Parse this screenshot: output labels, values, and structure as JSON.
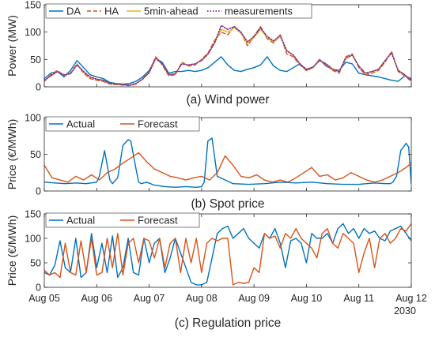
{
  "figure_name": "three-panel-time-series-figure",
  "x_tick_labels": [
    "Aug 05",
    "Aug 06",
    "Aug 07",
    "Aug 08",
    "Aug 09",
    "Aug 10",
    "Aug 11",
    "Aug 12"
  ],
  "x_year_label": "2030",
  "chart_data": [
    {
      "type": "line",
      "caption": "(a) Wind power",
      "ylabel": "Power (MW)",
      "ylim": [
        0,
        150
      ],
      "yticks": [
        0,
        50,
        100,
        150
      ],
      "xlim": [
        0,
        7
      ],
      "grid": false,
      "legend_placement": "top",
      "legend_orientation": "horizontal",
      "series": [
        {
          "name": "DA",
          "color": "#0072BD",
          "style": "solid",
          "x": [
            0,
            0.125,
            0.25,
            0.375,
            0.5,
            0.625,
            0.75,
            0.875,
            1,
            1.125,
            1.25,
            1.375,
            1.5,
            1.625,
            1.75,
            1.875,
            2,
            2.125,
            2.25,
            2.375,
            2.5,
            2.625,
            2.75,
            2.875,
            3,
            3.125,
            3.25,
            3.375,
            3.5,
            3.625,
            3.75,
            3.875,
            4,
            4.125,
            4.25,
            4.375,
            4.5,
            4.625,
            4.75,
            4.875,
            5,
            5.125,
            5.25,
            5.375,
            5.5,
            5.625,
            5.75,
            5.875,
            6,
            6.125,
            6.25,
            6.375,
            6.5,
            6.625,
            6.75,
            6.875,
            7
          ],
          "y": [
            15,
            25,
            28,
            18,
            30,
            48,
            35,
            22,
            18,
            15,
            8,
            6,
            5,
            6,
            10,
            18,
            30,
            52,
            45,
            25,
            28,
            28,
            30,
            28,
            30,
            35,
            45,
            55,
            40,
            30,
            28,
            32,
            35,
            40,
            55,
            38,
            30,
            28,
            35,
            42,
            30,
            35,
            50,
            38,
            32,
            30,
            45,
            42,
            25,
            22,
            20,
            18,
            15,
            12,
            10,
            20,
            15
          ]
        },
        {
          "name": "HA",
          "color": "#D95319",
          "style": "dashed",
          "x": [
            0,
            0.125,
            0.25,
            0.375,
            0.5,
            0.625,
            0.75,
            0.875,
            1,
            1.125,
            1.25,
            1.375,
            1.5,
            1.625,
            1.75,
            1.875,
            2,
            2.125,
            2.25,
            2.375,
            2.5,
            2.625,
            2.75,
            2.875,
            3,
            3.125,
            3.25,
            3.375,
            3.5,
            3.625,
            3.75,
            3.875,
            4,
            4.125,
            4.25,
            4.375,
            4.5,
            4.625,
            4.75,
            4.875,
            5,
            5.125,
            5.25,
            5.375,
            5.5,
            5.625,
            5.75,
            5.875,
            6,
            6.125,
            6.25,
            6.375,
            6.5,
            6.625,
            6.75,
            6.875,
            7
          ],
          "y": [
            10,
            22,
            30,
            20,
            25,
            42,
            25,
            15,
            12,
            10,
            5,
            4,
            3,
            2,
            5,
            15,
            28,
            55,
            40,
            20,
            22,
            45,
            38,
            40,
            50,
            62,
            85,
            100,
            95,
            110,
            100,
            75,
            92,
            110,
            88,
            80,
            95,
            60,
            55,
            40,
            30,
            35,
            50,
            40,
            30,
            25,
            55,
            60,
            35,
            22,
            25,
            30,
            45,
            65,
            28,
            20,
            10
          ]
        },
        {
          "name": "5min-ahead",
          "color": "#EDB120",
          "style": "solid",
          "x": [
            0,
            0.125,
            0.25,
            0.375,
            0.5,
            0.625,
            0.75,
            0.875,
            1,
            1.125,
            1.25,
            1.375,
            1.5,
            1.625,
            1.75,
            1.875,
            2,
            2.125,
            2.25,
            2.375,
            2.5,
            2.625,
            2.75,
            2.875,
            3,
            3.125,
            3.25,
            3.375,
            3.5,
            3.625,
            3.75,
            3.875,
            4,
            4.125,
            4.25,
            4.375,
            4.5,
            4.625,
            4.75,
            4.875,
            5,
            5.125,
            5.25,
            5.375,
            5.5,
            5.625,
            5.75,
            5.875,
            6,
            6.125,
            6.25,
            6.375,
            6.5,
            6.625,
            6.75,
            6.875,
            7
          ],
          "y": [
            12,
            20,
            28,
            22,
            24,
            40,
            28,
            18,
            14,
            12,
            6,
            5,
            4,
            3,
            6,
            14,
            26,
            52,
            42,
            22,
            24,
            42,
            40,
            42,
            48,
            60,
            80,
            105,
            100,
            108,
            98,
            80,
            90,
            105,
            90,
            82,
            92,
            65,
            58,
            42,
            32,
            36,
            48,
            42,
            32,
            28,
            52,
            58,
            38,
            25,
            28,
            32,
            48,
            62,
            30,
            22,
            12
          ]
        },
        {
          "name": "measurements",
          "color": "#7E2F8E",
          "style": "dotted",
          "x": [
            0,
            0.125,
            0.25,
            0.375,
            0.5,
            0.625,
            0.75,
            0.875,
            1,
            1.125,
            1.25,
            1.375,
            1.5,
            1.625,
            1.75,
            1.875,
            2,
            2.125,
            2.25,
            2.375,
            2.5,
            2.625,
            2.75,
            2.875,
            3,
            3.125,
            3.25,
            3.375,
            3.5,
            3.625,
            3.75,
            3.875,
            4,
            4.125,
            4.25,
            4.375,
            4.5,
            4.625,
            4.75,
            4.875,
            5,
            5.125,
            5.25,
            5.375,
            5.5,
            5.625,
            5.75,
            5.875,
            6,
            6.125,
            6.25,
            6.375,
            6.5,
            6.625,
            6.75,
            6.875,
            7
          ],
          "y": [
            12,
            20,
            28,
            22,
            24,
            40,
            28,
            18,
            14,
            12,
            6,
            5,
            4,
            3,
            6,
            14,
            26,
            52,
            42,
            22,
            24,
            42,
            40,
            42,
            48,
            60,
            80,
            112,
            105,
            110,
            100,
            82,
            92,
            108,
            92,
            84,
            94,
            66,
            58,
            42,
            32,
            36,
            48,
            42,
            32,
            28,
            52,
            58,
            38,
            25,
            28,
            32,
            48,
            62,
            30,
            22,
            12
          ]
        }
      ]
    },
    {
      "type": "line",
      "caption": "(b) Spot price",
      "ylabel": "Price (€/MWh)",
      "ylim": [
        0,
        100
      ],
      "yticks": [
        0,
        50,
        100
      ],
      "xlim": [
        0,
        7
      ],
      "grid": false,
      "legend_placement": "top-left",
      "legend_orientation": "horizontal",
      "series": [
        {
          "name": "Actual",
          "color": "#0072BD",
          "style": "solid",
          "x": [
            0,
            0.2,
            0.4,
            0.6,
            0.8,
            1.0,
            1.05,
            1.15,
            1.25,
            1.3,
            1.4,
            1.5,
            1.6,
            1.65,
            1.75,
            1.8,
            1.85,
            1.95,
            2.1,
            2.3,
            2.5,
            2.7,
            2.9,
            3.0,
            3.05,
            3.12,
            3.2,
            3.3,
            3.6,
            3.9,
            4.2,
            4.5,
            4.8,
            5.1,
            5.4,
            5.7,
            6.0,
            6.3,
            6.5,
            6.6,
            6.65,
            6.72,
            6.8,
            6.9,
            6.95,
            7
          ],
          "y": [
            12,
            11,
            10,
            11,
            10,
            12,
            20,
            55,
            15,
            10,
            18,
            62,
            70,
            68,
            30,
            12,
            10,
            12,
            8,
            6,
            5,
            6,
            5,
            6,
            12,
            68,
            72,
            20,
            10,
            9,
            10,
            12,
            11,
            12,
            10,
            9,
            9,
            11,
            10,
            10,
            12,
            20,
            55,
            65,
            60,
            10
          ]
        },
        {
          "name": "Forecast",
          "color": "#D95319",
          "style": "solid",
          "x": [
            0,
            0.15,
            0.3,
            0.45,
            0.6,
            0.75,
            0.9,
            1.05,
            1.2,
            1.35,
            1.5,
            1.65,
            1.8,
            1.95,
            2.1,
            2.25,
            2.4,
            2.55,
            2.7,
            2.85,
            3.0,
            3.15,
            3.3,
            3.45,
            3.6,
            3.75,
            3.9,
            4.05,
            4.2,
            4.35,
            4.5,
            4.65,
            4.8,
            4.95,
            5.1,
            5.25,
            5.4,
            5.55,
            5.7,
            5.85,
            6.0,
            6.15,
            6.3,
            6.45,
            6.6,
            6.75,
            6.9,
            7
          ],
          "y": [
            35,
            18,
            15,
            12,
            20,
            15,
            22,
            15,
            25,
            30,
            38,
            45,
            52,
            40,
            30,
            25,
            20,
            18,
            15,
            18,
            20,
            15,
            25,
            48,
            35,
            20,
            18,
            22,
            15,
            12,
            15,
            12,
            18,
            25,
            32,
            20,
            22,
            15,
            18,
            25,
            20,
            15,
            12,
            15,
            20,
            25,
            32,
            38
          ]
        }
      ]
    },
    {
      "type": "line",
      "caption": "(c) Regulation price",
      "ylabel": "Price (€/MWh)",
      "ylim": [
        0,
        150
      ],
      "yticks": [
        0,
        50,
        100,
        150
      ],
      "xlim": [
        0,
        7
      ],
      "grid": false,
      "legend_placement": "top-left",
      "legend_orientation": "horizontal",
      "series": [
        {
          "name": "Actual",
          "color": "#0072BD",
          "style": "solid",
          "x": [
            0,
            0.1,
            0.2,
            0.3,
            0.4,
            0.5,
            0.6,
            0.7,
            0.8,
            0.9,
            1.0,
            1.1,
            1.2,
            1.3,
            1.4,
            1.5,
            1.6,
            1.7,
            1.8,
            1.9,
            2.0,
            2.1,
            2.2,
            2.3,
            2.4,
            2.5,
            2.6,
            2.7,
            2.8,
            2.9,
            3.0,
            3.1,
            3.2,
            3.3,
            3.4,
            3.5,
            3.6,
            3.7,
            3.8,
            3.9,
            4.0,
            4.1,
            4.2,
            4.3,
            4.4,
            4.5,
            4.6,
            4.7,
            4.8,
            4.9,
            5.0,
            5.1,
            5.2,
            5.3,
            5.4,
            5.5,
            5.6,
            5.7,
            5.8,
            5.9,
            6.0,
            6.1,
            6.2,
            6.3,
            6.4,
            6.5,
            6.6,
            6.7,
            6.8,
            6.9,
            7
          ],
          "y": [
            30,
            25,
            45,
            95,
            40,
            30,
            100,
            20,
            30,
            110,
            40,
            90,
            30,
            105,
            20,
            40,
            100,
            30,
            25,
            100,
            50,
            90,
            100,
            30,
            60,
            100,
            70,
            40,
            10,
            5,
            5,
            10,
            60,
            110,
            120,
            125,
            100,
            110,
            120,
            100,
            90,
            80,
            110,
            100,
            120,
            90,
            40,
            95,
            100,
            90,
            50,
            110,
            100,
            100,
            110,
            90,
            120,
            130,
            110,
            120,
            100,
            120,
            110,
            115,
            100,
            95,
            115,
            120,
            125,
            110,
            95
          ]
        },
        {
          "name": "Forecast",
          "color": "#D95319",
          "style": "solid",
          "x": [
            0,
            0.1,
            0.2,
            0.3,
            0.4,
            0.5,
            0.6,
            0.7,
            0.8,
            0.9,
            1.0,
            1.1,
            1.2,
            1.3,
            1.4,
            1.5,
            1.6,
            1.7,
            1.8,
            1.9,
            2.0,
            2.1,
            2.2,
            2.3,
            2.4,
            2.5,
            2.6,
            2.7,
            2.8,
            2.9,
            3.0,
            3.1,
            3.2,
            3.3,
            3.4,
            3.5,
            3.6,
            3.7,
            3.8,
            3.9,
            4.0,
            4.1,
            4.2,
            4.3,
            4.4,
            4.5,
            4.6,
            4.7,
            4.8,
            4.9,
            5.0,
            5.1,
            5.2,
            5.3,
            5.4,
            5.5,
            5.6,
            5.7,
            5.8,
            5.9,
            6.0,
            6.1,
            6.2,
            6.3,
            6.4,
            6.5,
            6.6,
            6.7,
            6.8,
            6.9,
            7
          ],
          "y": [
            35,
            25,
            30,
            20,
            90,
            30,
            25,
            95,
            30,
            100,
            25,
            30,
            100,
            40,
            110,
            25,
            90,
            100,
            50,
            100,
            95,
            60,
            100,
            40,
            90,
            100,
            30,
            100,
            50,
            100,
            30,
            90,
            100,
            95,
            100,
            100,
            5,
            10,
            8,
            10,
            40,
            30,
            110,
            100,
            105,
            80,
            110,
            100,
            120,
            100,
            90,
            80,
            60,
            110,
            120,
            90,
            80,
            110,
            100,
            90,
            30,
            70,
            100,
            40,
            100,
            110,
            90,
            100,
            120,
            115,
            130
          ]
        }
      ]
    }
  ]
}
